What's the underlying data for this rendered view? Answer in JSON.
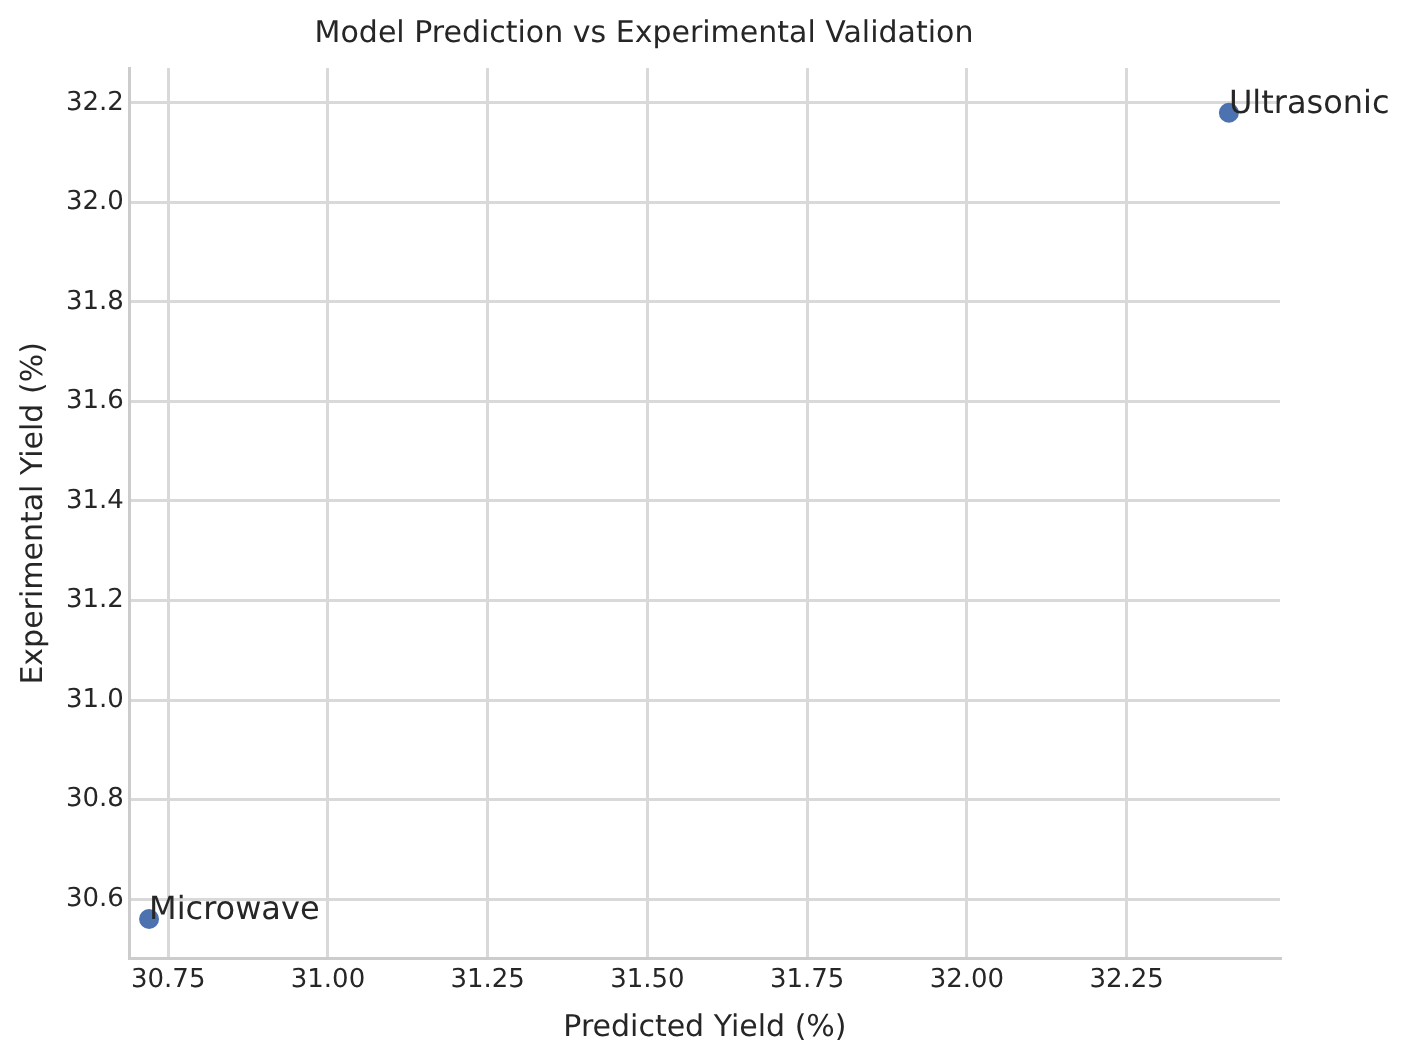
{
  "chart_data": {
    "type": "scatter",
    "title": "Model Prediction vs Experimental Validation",
    "xlabel": "Predicted Yield (%)",
    "ylabel": "Experimental Yield (%)",
    "x": [
      30.72,
      32.41
    ],
    "values": [
      30.56,
      32.18
    ],
    "color": "#4c72b0",
    "marker": "circle",
    "annotations": [
      {
        "text": "Microwave",
        "x": 30.72,
        "y": 30.56
      },
      {
        "text": "Ultrasonic",
        "x": 32.41,
        "y": 32.18
      }
    ],
    "xlim": [
      30.69,
      32.49
    ],
    "ylim": [
      30.48,
      32.27
    ],
    "xticks": [
      {
        "value": 30.75,
        "label": "30.75"
      },
      {
        "value": 31,
        "label": "31.00"
      },
      {
        "value": 31.25,
        "label": "31.25"
      },
      {
        "value": 31.5,
        "label": "31.50"
      },
      {
        "value": 31.75,
        "label": "31.75"
      },
      {
        "value": 32,
        "label": "32.00"
      },
      {
        "value": 32.25,
        "label": "32.25"
      }
    ],
    "yticks": [
      {
        "value": 30.6,
        "label": "30.6"
      },
      {
        "value": 30.8,
        "label": "30.8"
      },
      {
        "value": 31,
        "label": "31.0"
      },
      {
        "value": 31.2,
        "label": "31.2"
      },
      {
        "value": 31.4,
        "label": "31.4"
      },
      {
        "value": 31.6,
        "label": "31.6"
      },
      {
        "value": 31.8,
        "label": "31.8"
      },
      {
        "value": 32,
        "label": "32.0"
      },
      {
        "value": 32.2,
        "label": "32.2"
      }
    ],
    "grid": true,
    "legend": false
  }
}
